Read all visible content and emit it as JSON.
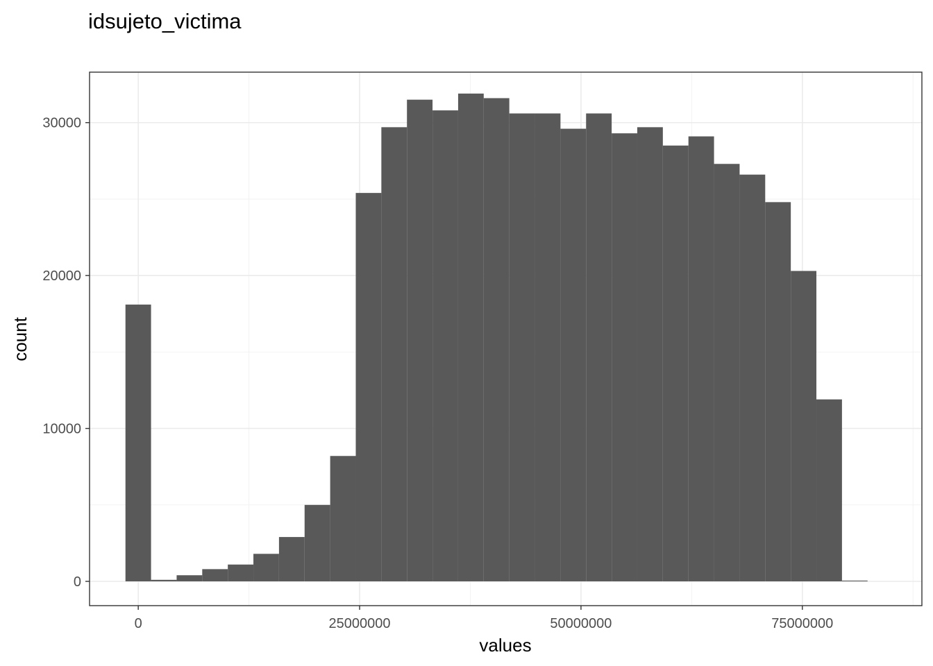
{
  "chart_data": {
    "type": "bar",
    "title": "idsujeto_victima",
    "xlabel": "values",
    "ylabel": "count",
    "xlim": [
      -5500000,
      88500000
    ],
    "ylim": [
      -1500000,
      33300
    ],
    "x_ticks": [
      0,
      25000000,
      50000000,
      75000000
    ],
    "x_tick_labels": [
      "0",
      "25000000",
      "50000000",
      "75000000"
    ],
    "y_ticks": [
      0,
      10000,
      20000,
      30000
    ],
    "y_tick_labels": [
      "0",
      "10000",
      "20000",
      "30000"
    ],
    "bin_width": 2890000,
    "bin_starts": [
      -1445000,
      1445000,
      4335000,
      7225000,
      10115000,
      13005000,
      15895000,
      18785000,
      21675000,
      24565000,
      27455000,
      30345000,
      33235000,
      36125000,
      39015000,
      41905000,
      44795000,
      47685000,
      50575000,
      53465000,
      56355000,
      59245000,
      62135000,
      65025000,
      67915000,
      70805000,
      73695000,
      76585000,
      79475000
    ],
    "values": [
      18100,
      100,
      400,
      800,
      1100,
      1800,
      2900,
      5000,
      8200,
      25400,
      29700,
      31500,
      30800,
      31900,
      31600,
      30600,
      30600,
      29600,
      30600,
      29300,
      29700,
      28500,
      29100,
      27300,
      26600,
      24800,
      20300,
      11900,
      50
    ],
    "bar_color": "#595959",
    "grid": true,
    "legend": "none"
  }
}
